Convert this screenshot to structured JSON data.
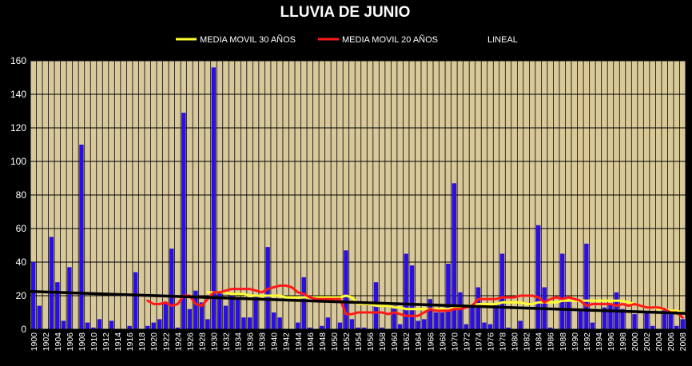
{
  "chart_data": {
    "type": "bar",
    "title": "LLUVIA DE JUNIO",
    "xlabel": "",
    "ylabel": "",
    "ylim": [
      0,
      160
    ],
    "yticks": [
      0,
      20,
      40,
      60,
      80,
      100,
      120,
      140,
      160
    ],
    "grid": true,
    "legend_position": "top",
    "categories": [
      "1900",
      "1901",
      "1902",
      "1903",
      "1904",
      "1905",
      "1906",
      "1907",
      "1908",
      "1909",
      "1910",
      "1911",
      "1912",
      "1913",
      "1914",
      "1915",
      "1916",
      "1917",
      "1918",
      "1919",
      "1920",
      "1921",
      "1922",
      "1923",
      "1924",
      "1925",
      "1926",
      "1927",
      "1928",
      "1929",
      "1930",
      "1931",
      "1932",
      "1933",
      "1934",
      "1935",
      "1936",
      "1937",
      "1938",
      "1939",
      "1940",
      "1941",
      "1942",
      "1943",
      "1944",
      "1945",
      "1946",
      "1947",
      "1948",
      "1949",
      "1950",
      "1951",
      "1952",
      "1953",
      "1954",
      "1955",
      "1956",
      "1957",
      "1958",
      "1959",
      "1960",
      "1961",
      "1962",
      "1963",
      "1964",
      "1965",
      "1966",
      "1967",
      "1968",
      "1969",
      "1970",
      "1971",
      "1972",
      "1973",
      "1974",
      "1975",
      "1976",
      "1977",
      "1978",
      "1979",
      "1980",
      "1981",
      "1982",
      "1983",
      "1984",
      "1985",
      "1986",
      "1987",
      "1988",
      "1989",
      "1990",
      "1991",
      "1992",
      "1993",
      "1994",
      "1995",
      "1996",
      "1997",
      "1998",
      "1999",
      "2000",
      "2001",
      "2002",
      "2003",
      "2004",
      "2005",
      "2006",
      "2007",
      "2008"
    ],
    "xtick_labels": [
      "1900",
      "1902",
      "1904",
      "1906",
      "1908",
      "1910",
      "1912",
      "1914",
      "1916",
      "1918",
      "1920",
      "1922",
      "1924",
      "1926",
      "1928",
      "1930",
      "1932",
      "1934",
      "1936",
      "1938",
      "1940",
      "1942",
      "1944",
      "1946",
      "1948",
      "1950",
      "1952",
      "1954",
      "1956",
      "1958",
      "1960",
      "1962",
      "1964",
      "1966",
      "1968",
      "1970",
      "1972",
      "1974",
      "1976",
      "1978",
      "1980",
      "1982",
      "1984",
      "1986",
      "1988",
      "1990",
      "1992",
      "1994",
      "1996",
      "1998",
      "2000",
      "2002",
      "2004",
      "2006",
      "2008"
    ],
    "bars": {
      "name": "",
      "color": "#2b0fe0",
      "values": [
        40,
        14,
        0,
        55,
        28,
        5,
        37,
        0,
        110,
        4,
        1,
        6,
        0,
        5,
        0,
        0,
        2,
        34,
        0,
        2,
        4,
        6,
        15,
        48,
        1,
        129,
        12,
        23,
        16,
        6,
        156,
        22,
        14,
        20,
        18,
        7,
        7,
        20,
        0,
        49,
        10,
        7,
        0,
        0,
        4,
        31,
        1,
        0,
        2,
        7,
        0,
        4,
        47,
        6,
        1,
        1,
        0,
        28,
        1,
        0,
        14,
        3,
        45,
        38,
        5,
        6,
        18,
        10,
        10,
        39,
        87,
        22,
        3,
        13,
        25,
        4,
        3,
        15,
        45,
        1,
        0,
        5,
        0,
        0,
        62,
        25,
        1,
        0,
        45,
        17,
        0,
        12,
        51,
        4,
        0,
        13,
        15,
        22,
        12,
        0,
        9,
        0,
        10,
        2,
        0,
        12,
        9,
        2,
        6
      ]
    },
    "series": [
      {
        "name": "MEDIA MOVIL 30 AÑOS",
        "color": "#ffff33",
        "x": [
          1929,
          1930,
          1931,
          1932,
          1933,
          1934,
          1935,
          1936,
          1937,
          1938,
          1939,
          1940,
          1941,
          1942,
          1943,
          1944,
          1945,
          1946,
          1947,
          1948,
          1949,
          1950,
          1951,
          1952,
          1953,
          1954,
          1955,
          1956,
          1957,
          1958,
          1959,
          1960,
          1961,
          1962,
          1963,
          1964,
          1965,
          1966,
          1967,
          1968,
          1969,
          1970,
          1971,
          1972,
          1973,
          1974,
          1975,
          1976,
          1977,
          1978,
          1979,
          1980,
          1981,
          1982,
          1983,
          1984,
          1985,
          1986,
          1987,
          1988,
          1989,
          1990,
          1991,
          1992,
          1993,
          1994,
          1995,
          1996,
          1997,
          1998,
          1999,
          2000,
          2001,
          2002,
          2003,
          2004,
          2005,
          2006,
          2007,
          2008
        ],
        "y": [
          22,
          22,
          22,
          22,
          21,
          21,
          21,
          20,
          20,
          20,
          20,
          20,
          20,
          19,
          19,
          19,
          19,
          19,
          19,
          19,
          19,
          19,
          19,
          20,
          19,
          15,
          15,
          15,
          14,
          14,
          14,
          13,
          13,
          12,
          12,
          12,
          12,
          12,
          12,
          12,
          12,
          13,
          13,
          14,
          14,
          15,
          15,
          15,
          15,
          16,
          16,
          16,
          16,
          15,
          15,
          16,
          16,
          16,
          16,
          17,
          17,
          17,
          17,
          17,
          17,
          17,
          17,
          17,
          17,
          17,
          16,
          15,
          14,
          13,
          13,
          12,
          12,
          11,
          11,
          10
        ]
      },
      {
        "name": "MEDIA MOVIL 20 AÑOS",
        "color": "#ff1a1a",
        "x": [
          1919,
          1920,
          1921,
          1922,
          1923,
          1924,
          1925,
          1926,
          1927,
          1928,
          1929,
          1930,
          1931,
          1932,
          1933,
          1934,
          1935,
          1936,
          1937,
          1938,
          1939,
          1940,
          1941,
          1942,
          1943,
          1944,
          1945,
          1946,
          1947,
          1948,
          1949,
          1950,
          1951,
          1952,
          1953,
          1954,
          1955,
          1956,
          1957,
          1958,
          1959,
          1960,
          1961,
          1962,
          1963,
          1964,
          1965,
          1966,
          1967,
          1968,
          1969,
          1970,
          1971,
          1972,
          1973,
          1974,
          1975,
          1976,
          1977,
          1978,
          1979,
          1980,
          1981,
          1982,
          1983,
          1984,
          1985,
          1986,
          1987,
          1988,
          1989,
          1990,
          1991,
          1992,
          1993,
          1994,
          1995,
          1996,
          1997,
          1998,
          1999,
          2000,
          2001,
          2002,
          2003,
          2004,
          2005,
          2006,
          2007,
          2008
        ],
        "y": [
          17,
          15,
          15,
          16,
          14,
          15,
          20,
          20,
          15,
          14,
          18,
          22,
          22,
          23,
          24,
          24,
          24,
          24,
          23,
          22,
          24,
          25,
          26,
          26,
          25,
          22,
          21,
          19,
          18,
          18,
          18,
          18,
          18,
          9,
          9,
          10,
          10,
          10,
          10,
          10,
          9,
          10,
          9,
          8,
          8,
          8,
          10,
          12,
          11,
          11,
          11,
          12,
          12,
          13,
          14,
          18,
          18,
          18,
          18,
          19,
          19,
          19,
          20,
          20,
          20,
          19,
          16,
          18,
          19,
          18,
          19,
          18,
          17,
          14,
          15,
          15,
          15,
          15,
          14,
          15,
          14,
          15,
          14,
          13,
          13,
          13,
          12,
          10,
          10,
          7
        ]
      },
      {
        "name": "LINEAL",
        "color": "#000000",
        "x": [
          1900,
          2008
        ],
        "y": [
          22.5,
          9.5
        ]
      }
    ]
  },
  "colors": {
    "background": "#000000",
    "plot_area": "#d9c99a",
    "grid": "#000000",
    "text": "#ffffff"
  }
}
